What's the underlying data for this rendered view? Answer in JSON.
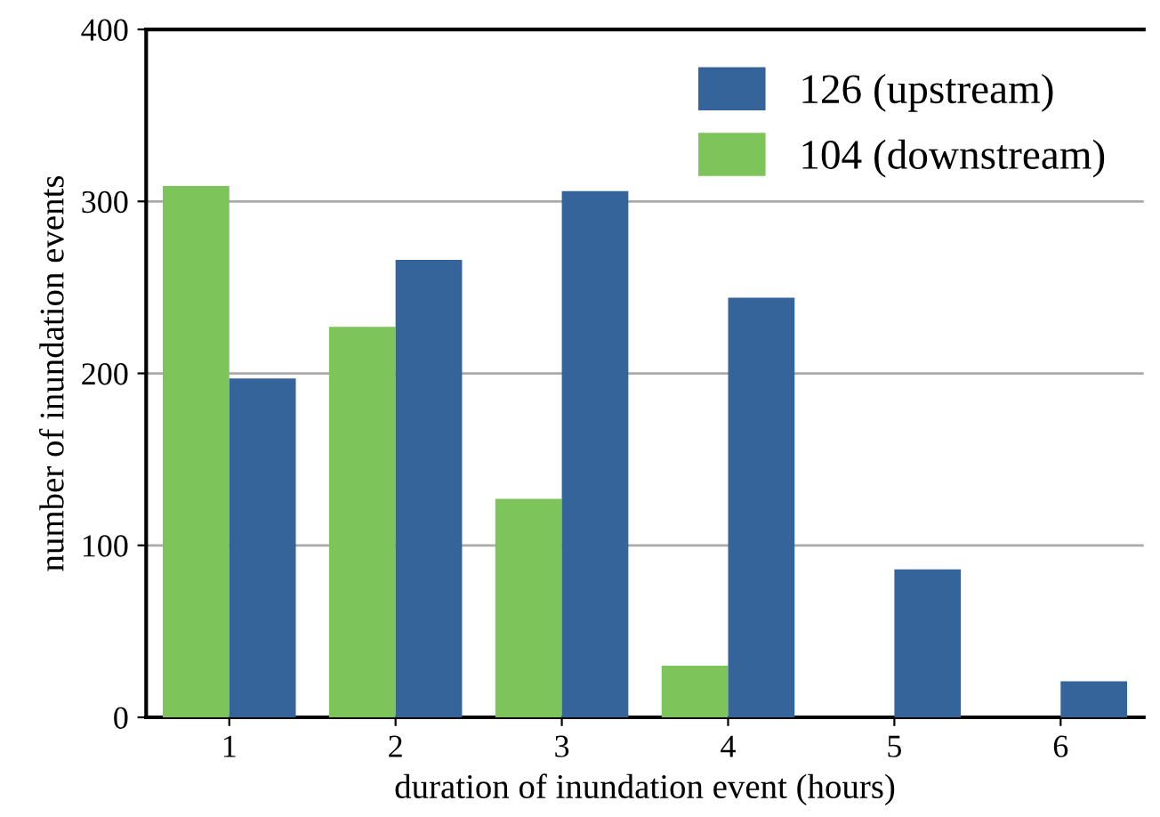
{
  "chart_data": {
    "type": "bar",
    "xlabel": "duration of inundation event (hours)",
    "ylabel": "number of inundation events",
    "categories": [
      "1",
      "2",
      "3",
      "4",
      "5",
      "6"
    ],
    "series": [
      {
        "name": "104 (downstream)",
        "color": "#7dc45a",
        "values": [
          309,
          227,
          127,
          30,
          null,
          null
        ]
      },
      {
        "name": "126 (upstream)",
        "color": "#35649a",
        "values": [
          197,
          266,
          306,
          244,
          86,
          21
        ]
      }
    ],
    "ylim": [
      0,
      400
    ],
    "yticks": [
      0,
      100,
      200,
      300,
      400
    ],
    "grid": "y",
    "legend": "top right"
  }
}
